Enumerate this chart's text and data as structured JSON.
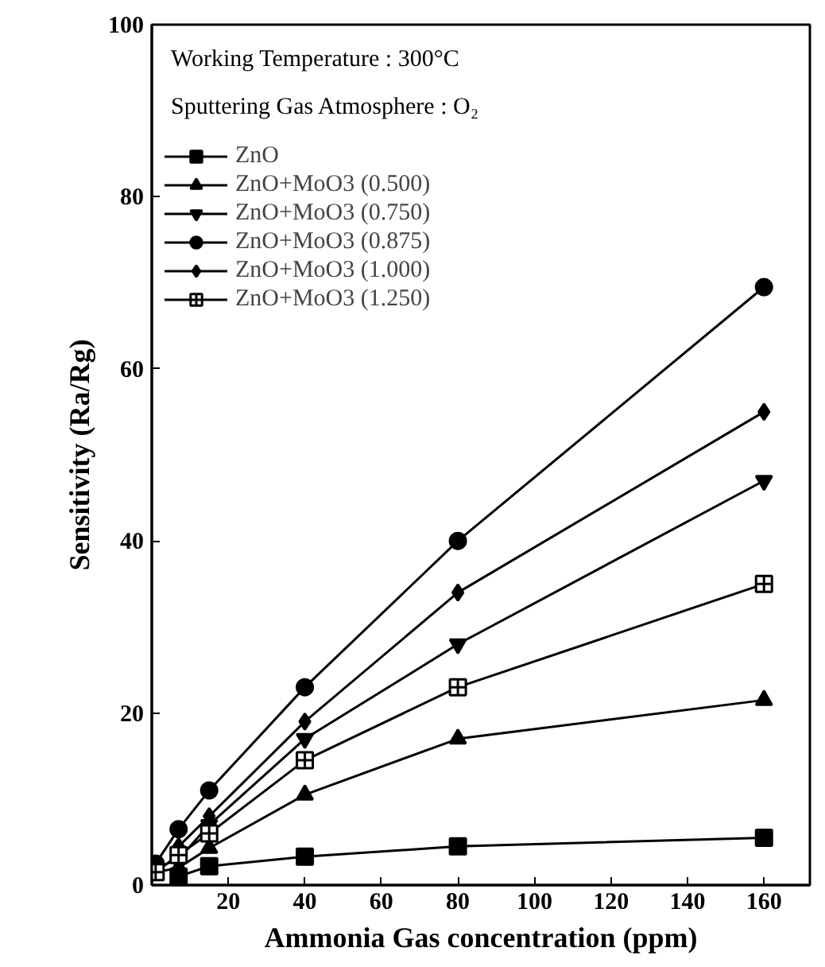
{
  "chart_data": {
    "type": "line",
    "xlabel": "Ammonia Gas concentration (ppm)",
    "ylabel": "Sensitivity (Ra/Rg)",
    "annotations": [
      "Working Temperature : 300°C",
      "Sputtering Gas Atmosphere : O₂"
    ],
    "x": [
      1,
      7,
      15,
      40,
      80,
      160
    ],
    "series": [
      {
        "name": "ZnO",
        "color": "#000000",
        "marker": "square",
        "values": [
          null,
          1,
          2.2,
          3.3,
          4.5,
          5.5
        ]
      },
      {
        "name": "ZnO+MoO3 (0.500)",
        "color": "#000000",
        "marker": "triangle",
        "values": [
          1.5,
          2,
          4.3,
          10.5,
          17,
          21.5
        ]
      },
      {
        "name": "ZnO+MoO3 (0.750)",
        "color": "#000000",
        "marker": "triangle",
        "values": [
          2,
          3,
          7,
          17,
          28,
          47
        ]
      },
      {
        "name": "ZnO+MoO3 (0.875)",
        "color": "#000000",
        "marker": "circle",
        "values": [
          2.5,
          6.5,
          11,
          23,
          40,
          69.5
        ]
      },
      {
        "name": "ZnO+MoO3 (1.000)",
        "color": "#000000",
        "marker": "diamond",
        "values": [
          null,
          4.5,
          8,
          19,
          34,
          55
        ]
      },
      {
        "name": "ZnO+MoO3 (1.250)",
        "color": "#000000",
        "marker": "cross",
        "values": [
          1.5,
          3.5,
          6,
          14.5,
          23,
          35
        ]
      }
    ],
    "xlim": [
      0,
      172
    ],
    "ylim": [
      0,
      100
    ],
    "xticks": [
      20,
      40,
      60,
      80,
      100,
      120,
      140,
      160
    ],
    "yticks": [
      0,
      20,
      40,
      60,
      80,
      100
    ],
    "grid": false,
    "legend": "top left",
    "line_style": "solid"
  }
}
